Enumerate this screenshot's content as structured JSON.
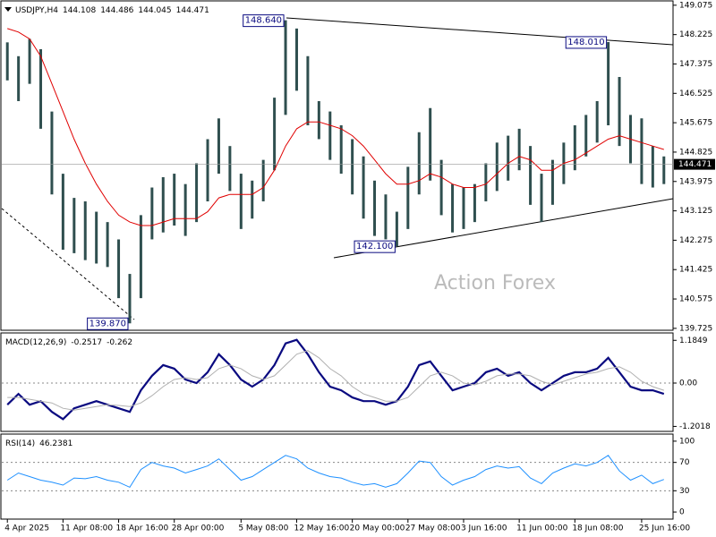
{
  "chart_data": [
    {
      "type": "ohlc",
      "title": "USDJPY,H4",
      "header_values": [
        144.108,
        144.486,
        144.045,
        144.471
      ],
      "watermark": "Action Forex",
      "color": "#2f4f4f",
      "categories": [
        "4 Apr 2025",
        null,
        null,
        null,
        null,
        "11 Apr 08:00",
        null,
        null,
        null,
        null,
        "18 Apr 16:00",
        null,
        null,
        null,
        null,
        "28 Apr 00:00",
        null,
        null,
        null,
        null,
        null,
        "5 May 08:00",
        null,
        null,
        null,
        null,
        "12 May 16:00",
        null,
        null,
        null,
        null,
        "20 May 00:00",
        null,
        null,
        null,
        null,
        "27 May 08:00",
        null,
        null,
        null,
        null,
        "3 Jun 16:00",
        null,
        null,
        null,
        null,
        "11 Jun 00:00",
        null,
        null,
        null,
        null,
        "18 Jun 08:00",
        null,
        null,
        null,
        null,
        null,
        "25 Jun 16:00",
        null,
        null
      ],
      "high": [
        148.0,
        147.6,
        148.1,
        147.8,
        146.0,
        144.2,
        143.5,
        143.4,
        143.1,
        142.8,
        142.3,
        141.3,
        143.0,
        143.8,
        144.1,
        144.2,
        143.9,
        144.5,
        145.2,
        145.8,
        145.0,
        144.2,
        144.0,
        144.6,
        146.4,
        148.64,
        148.4,
        147.6,
        146.3,
        146.0,
        145.6,
        145.2,
        144.7,
        144.0,
        143.6,
        143.1,
        144.4,
        145.4,
        146.1,
        144.6,
        143.9,
        143.8,
        143.9,
        144.5,
        145.1,
        145.3,
        145.5,
        145.0,
        144.2,
        144.6,
        145.1,
        145.6,
        145.9,
        146.3,
        148.01,
        147.0,
        145.9,
        145.8,
        145.0,
        144.7
      ],
      "low": [
        146.9,
        146.3,
        146.8,
        145.5,
        143.6,
        142.0,
        141.9,
        141.7,
        141.6,
        141.5,
        140.6,
        139.87,
        140.6,
        142.3,
        142.5,
        142.7,
        142.4,
        142.8,
        143.4,
        144.2,
        143.7,
        142.6,
        142.9,
        143.4,
        144.3,
        145.9,
        146.6,
        145.6,
        145.2,
        144.6,
        144.2,
        143.6,
        142.9,
        142.4,
        142.3,
        142.1,
        142.6,
        143.6,
        144.0,
        143.0,
        142.5,
        142.6,
        142.8,
        143.4,
        143.7,
        144.0,
        144.3,
        143.3,
        142.8,
        143.3,
        143.9,
        144.3,
        144.7,
        145.1,
        145.6,
        145.0,
        144.5,
        143.9,
        143.8,
        143.9
      ],
      "series": [
        {
          "color": "#e00000",
          "values": [
            148.4,
            148.3,
            148.1,
            147.6,
            146.8,
            146.0,
            145.2,
            144.5,
            143.9,
            143.4,
            143.0,
            142.8,
            142.7,
            142.7,
            142.8,
            142.9,
            142.9,
            142.9,
            143.1,
            143.5,
            143.6,
            143.6,
            143.6,
            143.8,
            144.3,
            145.0,
            145.5,
            145.7,
            145.7,
            145.6,
            145.5,
            145.3,
            145.0,
            144.6,
            144.2,
            143.9,
            143.9,
            144.0,
            144.2,
            144.1,
            143.9,
            143.8,
            143.8,
            143.9,
            144.2,
            144.5,
            144.7,
            144.6,
            144.3,
            144.3,
            144.5,
            144.6,
            144.8,
            145.0,
            145.2,
            145.3,
            145.2,
            145.1,
            145.0,
            144.9
          ]
        }
      ],
      "annotations": [
        {
          "value": 148.64,
          "label": "148.640"
        },
        {
          "value": 148.01,
          "label": "148.010"
        },
        {
          "value": 142.1,
          "label": "142.100"
        },
        {
          "value": 139.87,
          "label": "139.870"
        }
      ],
      "ylim": [
        139.67,
        149.2
      ],
      "yticks": [
        149.075,
        148.225,
        147.375,
        146.525,
        145.675,
        144.825,
        143.975,
        143.125,
        142.275,
        141.425,
        140.575,
        139.725
      ]
    },
    {
      "type": "line",
      "title": "MACD(12,26,9)",
      "header_values": [
        -0.2517,
        -0.262
      ],
      "series": [
        {
          "color": "#0a0a80",
          "values": [
            -0.6,
            -0.3,
            -0.6,
            -0.5,
            -0.8,
            -1.0,
            -0.7,
            -0.6,
            -0.5,
            -0.6,
            -0.7,
            -0.8,
            -0.2,
            0.2,
            0.5,
            0.4,
            0.1,
            0.0,
            0.3,
            0.8,
            0.5,
            0.1,
            -0.1,
            0.1,
            0.5,
            1.1,
            1.2,
            0.8,
            0.3,
            -0.1,
            -0.2,
            -0.4,
            -0.5,
            -0.5,
            -0.6,
            -0.5,
            -0.1,
            0.5,
            0.6,
            0.2,
            -0.2,
            -0.1,
            0.0,
            0.3,
            0.4,
            0.2,
            0.3,
            0.0,
            -0.2,
            0.0,
            0.2,
            0.3,
            0.3,
            0.4,
            0.7,
            0.3,
            -0.1,
            -0.2,
            -0.2,
            -0.3
          ]
        },
        {
          "color": "#b0b0b0",
          "values": [
            -0.4,
            -0.4,
            -0.45,
            -0.5,
            -0.55,
            -0.7,
            -0.75,
            -0.7,
            -0.65,
            -0.6,
            -0.62,
            -0.65,
            -0.55,
            -0.35,
            -0.1,
            0.1,
            0.15,
            0.1,
            0.15,
            0.4,
            0.5,
            0.4,
            0.2,
            0.1,
            0.2,
            0.5,
            0.8,
            0.9,
            0.7,
            0.4,
            0.2,
            -0.1,
            -0.3,
            -0.4,
            -0.5,
            -0.5,
            -0.4,
            -0.1,
            0.2,
            0.3,
            0.2,
            0.0,
            -0.05,
            0.05,
            0.2,
            0.25,
            0.25,
            0.2,
            0.05,
            -0.05,
            0.05,
            0.15,
            0.25,
            0.3,
            0.4,
            0.45,
            0.3,
            0.05,
            -0.1,
            -0.2
          ]
        }
      ],
      "ylim": [
        -1.34,
        1.39
      ],
      "yticks": [
        1.1849,
        {
          "value": 0,
          "label": "0.00"
        },
        -1.2018
      ]
    },
    {
      "type": "line",
      "title": "RSI(14)",
      "header_values": [
        46.2381
      ],
      "series": [
        {
          "color": "#1e90ff",
          "values": [
            45,
            55,
            50,
            45,
            42,
            38,
            48,
            47,
            50,
            45,
            42,
            35,
            60,
            70,
            65,
            62,
            55,
            60,
            65,
            75,
            60,
            45,
            50,
            60,
            70,
            80,
            75,
            62,
            55,
            50,
            48,
            42,
            38,
            40,
            35,
            40,
            55,
            72,
            70,
            50,
            38,
            45,
            50,
            60,
            65,
            62,
            64,
            48,
            40,
            55,
            62,
            68,
            65,
            70,
            80,
            58,
            45,
            52,
            40,
            46
          ]
        }
      ],
      "ylim": [
        -10,
        110
      ],
      "yticks": [
        100,
        70,
        30,
        0
      ]
    }
  ]
}
